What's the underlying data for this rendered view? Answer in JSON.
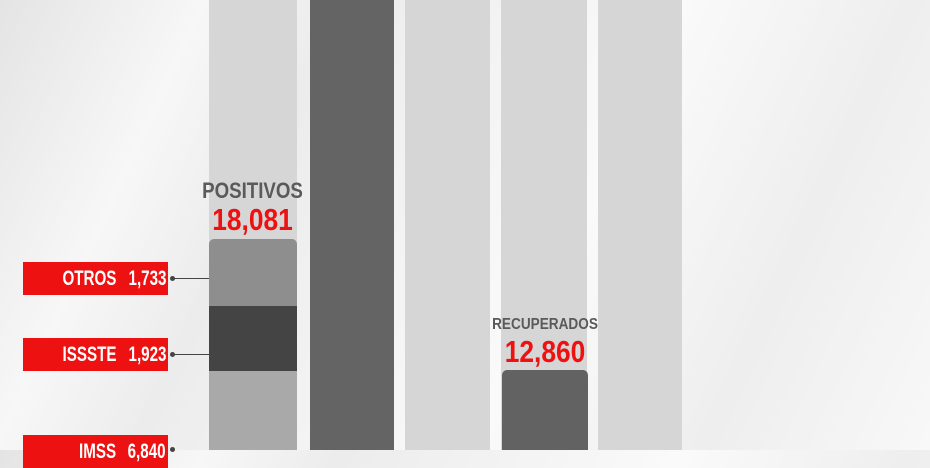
{
  "chart_data": {
    "type": "bar",
    "bars": [
      {
        "title": "POSITIVOS",
        "value": "18,081",
        "segments": [
          {
            "name": "OTROS",
            "value": "1,733",
            "color": "#8e8e8e"
          },
          {
            "name": "ISSSTE",
            "value": "1,923",
            "color": "#444444"
          },
          {
            "name": "IMSS",
            "value": "6,840",
            "color": "#a9a9a9"
          }
        ]
      },
      {
        "title": "RECUPERADOS",
        "value": "12,860",
        "color": "#626262"
      }
    ],
    "colors": {
      "accent": "#ee1111",
      "title": "#5a5a5a",
      "column_light": "#d6d6d6",
      "column_dark": "#646464"
    }
  }
}
